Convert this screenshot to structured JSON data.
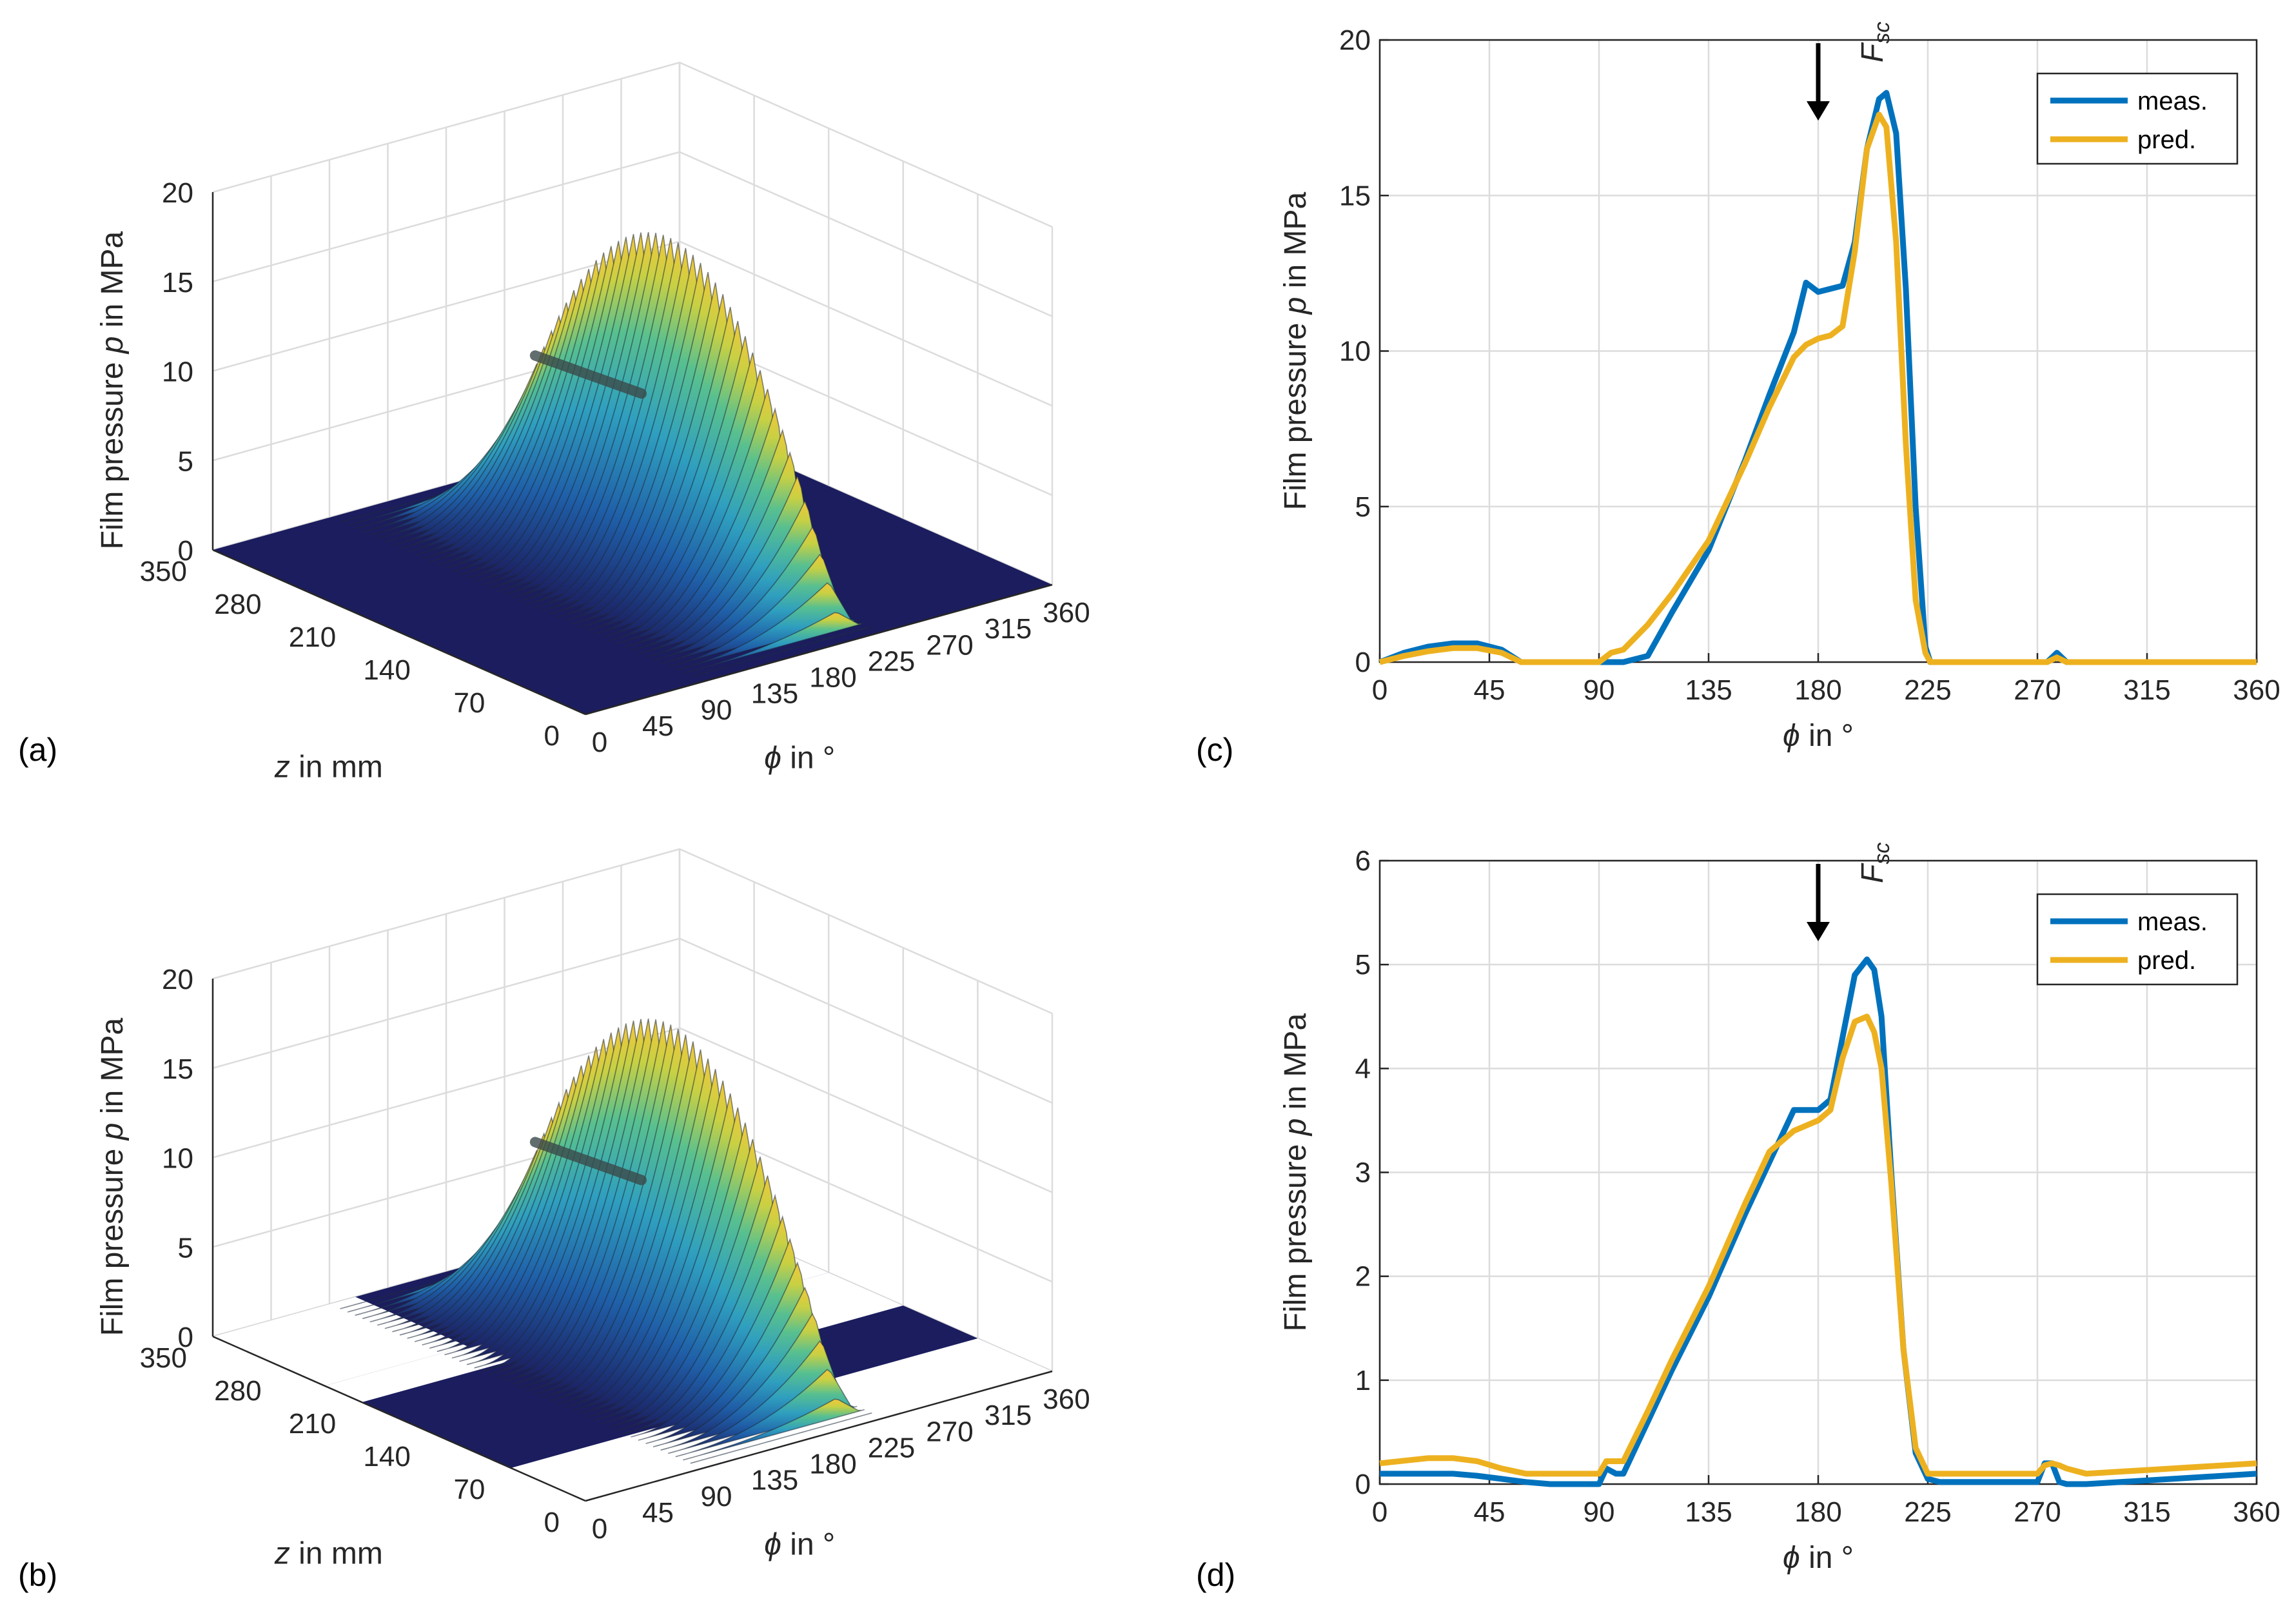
{
  "panels": [
    {
      "id": "a",
      "label": "(a)"
    },
    {
      "id": "b",
      "label": "(b)"
    },
    {
      "id": "c",
      "label": "(c)"
    },
    {
      "id": "d",
      "label": "(d)"
    }
  ],
  "axis_text": {
    "ylabel_pre": "Film pressure ",
    "ylabel_var": "p",
    "ylabel_post": " in MPa",
    "phi_var": "ϕ",
    "phi_post": " in °",
    "z_var": "z",
    "z_post": " in mm",
    "force_var": "F",
    "force_sub": "sc"
  },
  "colors": {
    "meas": "#0072BD",
    "pred": "#EDB120",
    "surface_low": "#1b1d5e",
    "surface_mid": "#2f8fbf",
    "surface_high": "#f3c73a"
  },
  "chart_data": [
    {
      "id": "a",
      "type": "surface3d",
      "title": "",
      "zlabel": "Film pressure p in MPa",
      "xlabel": "ϕ in °",
      "ylabel": "z in mm",
      "z_ticks": [
        "0",
        "5",
        "10",
        "15",
        "20"
      ],
      "phi_ticks": [
        "0",
        "45",
        "90",
        "135",
        "180",
        "225",
        "270",
        "315",
        "360"
      ],
      "zaxis_ticks": [
        "0",
        "70",
        "140",
        "210",
        "280",
        "350"
      ],
      "peak_pressure": 18.3,
      "peak_phi": 207
    },
    {
      "id": "b",
      "type": "surface3d",
      "title": "",
      "zlabel": "Film pressure p in MPa",
      "xlabel": "ϕ in °",
      "ylabel": "z in mm",
      "z_ticks": [
        "0",
        "5",
        "10",
        "15",
        "20"
      ],
      "phi_ticks": [
        "0",
        "45",
        "90",
        "135",
        "180",
        "225",
        "270",
        "315",
        "360"
      ],
      "zaxis_ticks": [
        "0",
        "70",
        "140",
        "210",
        "280",
        "350"
      ],
      "peak_pressure": 18.3,
      "peak_phi": 207
    },
    {
      "id": "c",
      "type": "line",
      "xlabel": "ϕ in °",
      "ylabel": "Film pressure p in MPa",
      "xlim": [
        0,
        360
      ],
      "ylim": [
        0,
        20
      ],
      "xticks": [
        0,
        45,
        90,
        135,
        180,
        225,
        270,
        315,
        360
      ],
      "yticks": [
        0,
        5,
        10,
        15,
        20
      ],
      "arrow_phi": 180,
      "legend_position": "top-right",
      "series": [
        {
          "name": "meas.",
          "x": [
            0,
            10,
            20,
            30,
            40,
            50,
            58,
            62,
            90,
            100,
            110,
            120,
            135,
            150,
            160,
            170,
            175,
            180,
            185,
            190,
            195,
            200,
            205,
            208,
            212,
            216,
            220,
            224,
            226,
            230,
            270,
            274,
            278,
            282,
            290,
            360
          ],
          "y": [
            0,
            0.3,
            0.5,
            0.6,
            0.6,
            0.4,
            0,
            0,
            0,
            0,
            0.2,
            1.6,
            3.6,
            6.5,
            8.6,
            10.6,
            12.2,
            11.9,
            12.0,
            12.1,
            13.5,
            16.5,
            18.1,
            18.3,
            17.0,
            12.0,
            5.0,
            0.5,
            0,
            0,
            0,
            0,
            0.3,
            0,
            0,
            0
          ]
        },
        {
          "name": "pred.",
          "x": [
            0,
            10,
            20,
            30,
            40,
            50,
            58,
            62,
            90,
            95,
            100,
            110,
            120,
            135,
            150,
            160,
            170,
            175,
            180,
            185,
            190,
            195,
            200,
            205,
            208,
            212,
            216,
            220,
            224,
            226,
            230,
            270,
            274,
            278,
            282,
            290,
            360
          ],
          "y": [
            0,
            0.2,
            0.35,
            0.45,
            0.45,
            0.3,
            0,
            0,
            0,
            0.3,
            0.4,
            1.2,
            2.2,
            3.9,
            6.4,
            8.2,
            9.8,
            10.2,
            10.4,
            10.5,
            10.8,
            13.2,
            16.5,
            17.6,
            17.2,
            13.5,
            7.0,
            2.0,
            0.3,
            0,
            0,
            0,
            0,
            0.15,
            0,
            0,
            0
          ]
        }
      ]
    },
    {
      "id": "d",
      "type": "line",
      "xlabel": "ϕ in °",
      "ylabel": "Film pressure p in MPa",
      "xlim": [
        0,
        360
      ],
      "ylim": [
        0,
        6
      ],
      "xticks": [
        0,
        45,
        90,
        135,
        180,
        225,
        270,
        315,
        360
      ],
      "yticks": [
        0,
        1,
        2,
        3,
        4,
        5,
        6
      ],
      "arrow_phi": 180,
      "legend_position": "top-right",
      "series": [
        {
          "name": "meas.",
          "x": [
            0,
            20,
            30,
            40,
            50,
            60,
            70,
            90,
            93,
            97,
            100,
            110,
            120,
            135,
            150,
            160,
            170,
            175,
            180,
            185,
            190,
            195,
            200,
            203,
            206,
            210,
            215,
            220,
            225,
            230,
            270,
            273,
            276,
            279,
            282,
            290,
            360
          ],
          "y": [
            0.1,
            0.1,
            0.1,
            0.08,
            0.05,
            0.02,
            0,
            0,
            0.15,
            0.1,
            0.1,
            0.6,
            1.1,
            1.8,
            2.6,
            3.1,
            3.6,
            3.6,
            3.6,
            3.7,
            4.3,
            4.9,
            5.05,
            4.95,
            4.5,
            3.0,
            1.3,
            0.3,
            0.05,
            0.02,
            0.02,
            0.2,
            0.2,
            0.02,
            0,
            0,
            0.1
          ]
        },
        {
          "name": "pred.",
          "x": [
            0,
            20,
            30,
            40,
            50,
            60,
            70,
            90,
            93,
            97,
            100,
            110,
            120,
            135,
            150,
            160,
            170,
            175,
            180,
            185,
            190,
            195,
            200,
            203,
            206,
            210,
            215,
            220,
            225,
            230,
            270,
            273,
            276,
            279,
            282,
            290,
            360
          ],
          "y": [
            0.2,
            0.25,
            0.25,
            0.22,
            0.15,
            0.1,
            0.1,
            0.1,
            0.22,
            0.22,
            0.22,
            0.7,
            1.2,
            1.9,
            2.7,
            3.2,
            3.4,
            3.45,
            3.5,
            3.6,
            4.1,
            4.45,
            4.5,
            4.35,
            4.0,
            2.9,
            1.3,
            0.35,
            0.1,
            0.1,
            0.1,
            0.18,
            0.2,
            0.18,
            0.15,
            0.1,
            0.2
          ]
        }
      ]
    }
  ]
}
